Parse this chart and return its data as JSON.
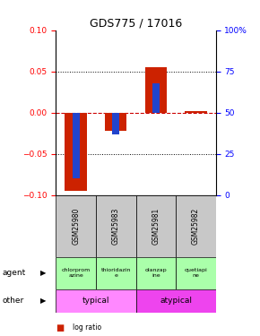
{
  "title": "GDS775 / 17016",
  "samples": [
    "GSM25980",
    "GSM25983",
    "GSM25981",
    "GSM25982"
  ],
  "log_ratio": [
    -0.095,
    -0.022,
    0.055,
    0.002
  ],
  "percentile_rank_pct": [
    10,
    37,
    68,
    50
  ],
  "ylim": [
    -0.1,
    0.1
  ],
  "yticks_left": [
    -0.1,
    -0.05,
    0,
    0.05,
    0.1
  ],
  "yticks_right_pct": [
    0,
    25,
    50,
    75,
    100
  ],
  "agent_labels": [
    "chlorprom\nazine",
    "thioridazin\ne",
    "olanzap\nine",
    "quetiapi\nne"
  ],
  "bar_width": 0.55,
  "blue_bar_width": 0.18,
  "red_color": "#cc2200",
  "blue_color": "#2244cc",
  "zero_line_color": "#cc0000",
  "sample_box_color": "#c8c8c8",
  "agent_color": "#aaffaa",
  "typical_color": "#ff88ff",
  "atypical_color": "#ee44ee",
  "title_fontsize": 9
}
